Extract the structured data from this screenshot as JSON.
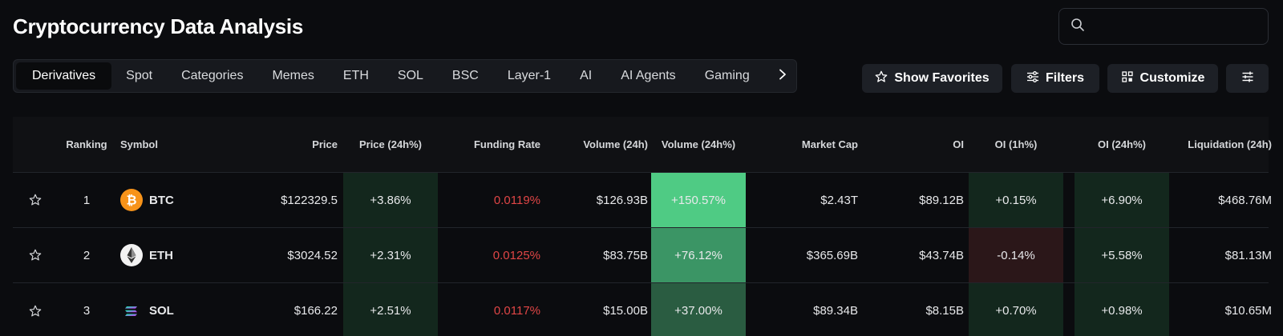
{
  "page": {
    "title": "Cryptocurrency Data Analysis"
  },
  "search": {
    "placeholder": "",
    "value": ""
  },
  "tabs": [
    {
      "label": "Derivatives",
      "active": true
    },
    {
      "label": "Spot"
    },
    {
      "label": "Categories"
    },
    {
      "label": "Memes"
    },
    {
      "label": "ETH"
    },
    {
      "label": "SOL"
    },
    {
      "label": "BSC"
    },
    {
      "label": "Layer-1"
    },
    {
      "label": "AI"
    },
    {
      "label": "AI Agents"
    },
    {
      "label": "Gaming"
    }
  ],
  "toolbar": {
    "favorites_label": "Show Favorites",
    "filters_label": "Filters",
    "customize_label": "Customize"
  },
  "icons": {
    "search": "search-icon",
    "tabs_next": "chevron-right-icon",
    "favorites": "star-icon",
    "filters": "sliders-icon",
    "customize": "grid-icon",
    "settings": "settings-sliders-icon"
  },
  "colors": {
    "negative": "#e04646",
    "bg": "#0b0c0f",
    "heat_price": "#13271d",
    "heat_vol_btc": "#4fcb84",
    "heat_vol_eth": "#3b9565",
    "heat_vol_sol": "#2a5c41",
    "heat_oi_pos": "#13271d",
    "heat_oi_neg": "#2b1719"
  },
  "table": {
    "columns": {
      "ranking": "Ranking",
      "symbol": "Symbol",
      "price": "Price",
      "price_24h": "Price (24h%)",
      "funding_rate": "Funding Rate",
      "volume_24h": "Volume (24h)",
      "volume_24h_pct": "Volume (24h%)",
      "market_cap": "Market Cap",
      "oi": "OI",
      "oi_1h": "OI (1h%)",
      "oi_24h": "OI (24h%)",
      "liquidation_24h": "Liquidation (24h)"
    },
    "rows": [
      {
        "rank": "1",
        "symbol": "BTC",
        "icon": "bitcoin-icon",
        "price": "$122329.5",
        "price_24h": "+3.86%",
        "funding_rate": "0.0119%",
        "volume_24h": "$126.93B",
        "volume_24h_pct": "+150.57%",
        "market_cap": "$2.43T",
        "oi": "$89.12B",
        "oi_1h": "+0.15%",
        "oi_24h": "+6.90%",
        "liquidation_24h": "$468.76M"
      },
      {
        "rank": "2",
        "symbol": "ETH",
        "icon": "ethereum-icon",
        "price": "$3024.52",
        "price_24h": "+2.31%",
        "funding_rate": "0.0125%",
        "volume_24h": "$83.75B",
        "volume_24h_pct": "+76.12%",
        "market_cap": "$365.69B",
        "oi": "$43.74B",
        "oi_1h": "-0.14%",
        "oi_24h": "+5.58%",
        "liquidation_24h": "$81.13M"
      },
      {
        "rank": "3",
        "symbol": "SOL",
        "icon": "solana-icon",
        "price": "$166.22",
        "price_24h": "+2.51%",
        "funding_rate": "0.0117%",
        "volume_24h": "$15.00B",
        "volume_24h_pct": "+37.00%",
        "market_cap": "$89.34B",
        "oi": "$8.15B",
        "oi_1h": "+0.70%",
        "oi_24h": "+0.98%",
        "liquidation_24h": "$10.65M"
      }
    ]
  }
}
